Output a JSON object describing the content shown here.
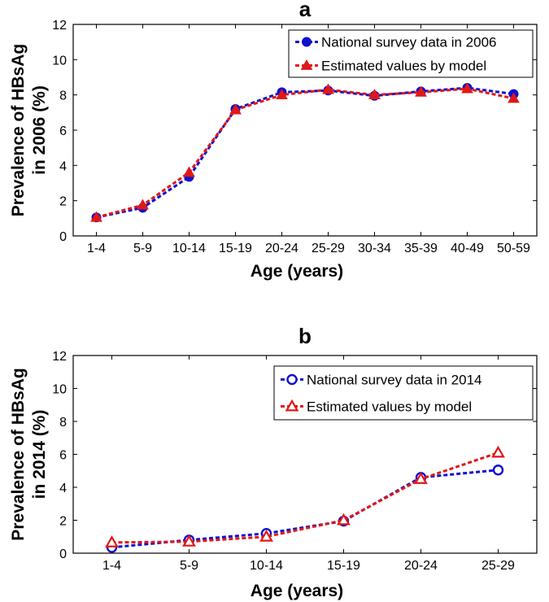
{
  "chart_data": [
    {
      "type": "line",
      "title": "a",
      "xlabel": "Age (years)",
      "ylabel_lines": [
        "Prevalence of HBsAg",
        "in 2006 (%)"
      ],
      "categories": [
        "1-4",
        "5-9",
        "10-14",
        "15-19",
        "20-24",
        "25-29",
        "30-34",
        "35-39",
        "40-49",
        "50-59"
      ],
      "ylim": [
        0,
        12
      ],
      "yticks": [
        0,
        2,
        4,
        6,
        8,
        10,
        12
      ],
      "grid": false,
      "legend_position": "top-right",
      "series": [
        {
          "name": "National survey data in 2006",
          "color": "#1010d0",
          "marker": "circle-filled",
          "values": [
            1.05,
            1.6,
            3.35,
            7.2,
            8.15,
            8.25,
            7.95,
            8.2,
            8.4,
            8.05
          ]
        },
        {
          "name": "Estimated values by model",
          "color": "#e01818",
          "marker": "triangle-filled",
          "values": [
            1.05,
            1.75,
            3.6,
            7.15,
            8.0,
            8.3,
            8.0,
            8.15,
            8.35,
            7.8
          ]
        }
      ]
    },
    {
      "type": "line",
      "title": "b",
      "xlabel": "Age (years)",
      "ylabel_lines": [
        "Prevalence of HBsAg",
        "in 2014 (%)"
      ],
      "categories": [
        "1-4",
        "5-9",
        "10-14",
        "15-19",
        "20-24",
        "25-29"
      ],
      "ylim": [
        0,
        12
      ],
      "yticks": [
        0,
        2,
        4,
        6,
        8,
        10,
        12
      ],
      "grid": false,
      "legend_position": "top-right",
      "series": [
        {
          "name": "National survey data in 2014",
          "color": "#1010d0",
          "marker": "circle-open",
          "values": [
            0.35,
            0.8,
            1.2,
            1.95,
            4.6,
            5.05
          ]
        },
        {
          "name": "Estimated values by model",
          "color": "#e01818",
          "marker": "triangle-open",
          "values": [
            0.65,
            0.7,
            1.0,
            2.0,
            4.5,
            6.1
          ]
        }
      ]
    }
  ]
}
